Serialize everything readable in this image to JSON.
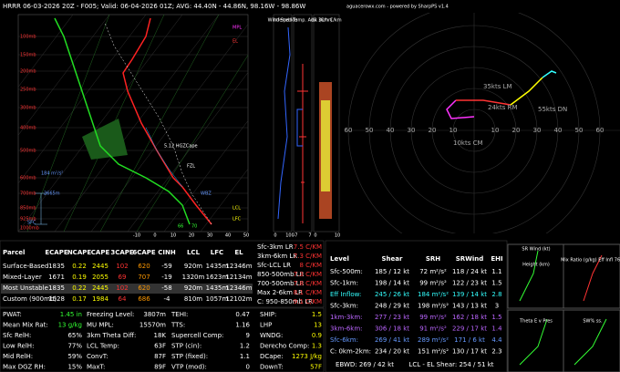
{
  "header": {
    "title": "HRRR 06-03-2026 20Z - F005; Valid: 06-04-2026 01Z; AVG: 44.40N - 44.86N, 98.16W - 98.86W",
    "credit": "aguacerowx.com - powered by SharpPS v1.4"
  },
  "skewt": {
    "pressure_labels": [
      "100mb",
      "150mb",
      "200mb",
      "250mb",
      "300mb",
      "400mb",
      "500mb",
      "600mb",
      "700mb",
      "850mb",
      "925mb",
      "1000mb"
    ],
    "x_labels": [
      "-10",
      "0",
      "10",
      "20",
      "30",
      "40",
      "50"
    ],
    "annotations": [
      "MPL",
      "EL",
      "LCL",
      "LFC",
      "5.12 HGZCape",
      "2665m",
      "184 m²/s²",
      "SFC",
      "FZL",
      "WBZ",
      "66",
      "70"
    ]
  },
  "wind_panels": {
    "titles": [
      "Wind Spd kts",
      "Inferred Temp. Adv. (C/hr)",
      "LR 3km C/km"
    ],
    "axis": [
      "0",
      "100",
      "-7",
      "7",
      "0",
      "10"
    ]
  },
  "hodograph": {
    "ring_labels": [
      "60",
      "50",
      "40",
      "30",
      "20",
      "10",
      "10",
      "20",
      "30",
      "40",
      "50",
      "60"
    ],
    "annotations": [
      "35kts LM",
      "24kts RM",
      "55kts DN",
      "10kts CM"
    ]
  },
  "parcel_table": {
    "columns": [
      "Parcel",
      "ECAPE",
      "NCAPE",
      "CAPE",
      "3CAPE",
      "6CAPE",
      "CINH",
      "LCL",
      "LFC",
      "EL"
    ],
    "rows": [
      [
        "Surface-Based",
        "1835",
        "0.22",
        "2445",
        "102",
        "620",
        "-59",
        "920m",
        "1435m",
        "12346m"
      ],
      [
        "Mixed-Layer",
        "1671",
        "0.19",
        "2055",
        "69",
        "707",
        "-19",
        "1320m",
        "1623m",
        "12134m"
      ],
      [
        "Most Unstable",
        "1835",
        "0.22",
        "2445",
        "102",
        "620",
        "-58",
        "920m",
        "1435m",
        "12346m"
      ],
      [
        "Custom (900mb)",
        "1528",
        "0.17",
        "1984",
        "64",
        "686",
        "-4",
        "810m",
        "1057m",
        "12102m"
      ]
    ]
  },
  "lapse_rates": [
    [
      "Sfc-3km LR",
      "7.5 C/KM"
    ],
    [
      "3km-6km LR",
      "7.3 C/KM"
    ],
    [
      "Sfc-LCL LR",
      "8 C/KM"
    ],
    [
      "850-500mb LR",
      "7.3 C/KM"
    ],
    [
      "700-500mb LR",
      "7.8 C/KM"
    ],
    [
      "Max 2-6km LR",
      "8.1 C/KM"
    ],
    [
      "C: 950-850mb LR",
      "9.1 C/KM"
    ]
  ],
  "indices": [
    [
      "PWAT:",
      "1.45 in",
      "Freezing Level:",
      "3807m",
      "TEHI:",
      "0.47"
    ],
    [
      "Mean Mix Rat:",
      "13 g/kg",
      "MU MPL:",
      "15570m",
      "TTS:",
      "1.16"
    ],
    [
      "Sfc RelH:",
      "65%",
      "3km Theta Diff:",
      "18K",
      "Supercell Comp:",
      "9"
    ],
    [
      "Low RelH:",
      "77%",
      "LCL Temp:",
      "63F",
      "STP (cin):",
      "1.2"
    ],
    [
      "Mid RelH:",
      "59%",
      "ConvT:",
      "87F",
      "STP (fixed):",
      "1.1"
    ],
    [
      "Max DGZ RH:",
      "15%",
      "MaxT:",
      "89F",
      "VTP (mod):",
      "0"
    ]
  ],
  "severe": [
    [
      "SHIP:",
      "1.5"
    ],
    [
      "LHP",
      "13"
    ],
    [
      "WNDG:",
      "0.9"
    ],
    [
      "Derecho Comp:",
      "1.3"
    ],
    [
      "DCape:",
      "1273 J/kg"
    ],
    [
      "DownT:",
      "57F"
    ]
  ],
  "kinematics": {
    "columns": [
      "Level",
      "Shear",
      "SRH",
      "SRWind",
      "EHI"
    ],
    "rows": [
      [
        "Sfc-500m:",
        "185 / 12 kt",
        "72 m²/s²",
        "118 / 24 kt",
        "1.1"
      ],
      [
        "Sfc-1km:",
        "198 / 14 kt",
        "99 m²/s²",
        "122 / 23 kt",
        "1.5"
      ],
      [
        "Eff Inflow:",
        "245 / 26 kt",
        "184 m²/s²",
        "139 / 14 kt",
        "2.8"
      ],
      [
        "Sfc-3km:",
        "248 / 29 kt",
        "198 m²/s²",
        "143 / 13 kt",
        "3"
      ],
      [
        "1km-3km:",
        "277 / 23 kt",
        "99 m²/s²",
        "162 / 18 kt",
        "1.5"
      ],
      [
        "3km-6km:",
        "306 / 18 kt",
        "91 m²/s²",
        "229 / 17 kt",
        "1.4"
      ],
      [
        "Sfc-6km:",
        "269 / 41 kt",
        "289 m²/s²",
        "171 / 6 kt",
        "4.4"
      ],
      [
        "C: 0km-2km:",
        "234 / 20 kt",
        "151 m²/s²",
        "130 / 17 kt",
        "2.3"
      ]
    ],
    "footer": [
      "EBWD: 269 / 42 kt",
      "LCL - EL Shear: 254 / 51 kt"
    ]
  },
  "small_panels": [
    "SR Wind (kt)",
    "Height (km)",
    "Mix Ratio (g/kg) Eff Infl 76%",
    "Theta E v Pres",
    "SW% ss."
  ]
}
